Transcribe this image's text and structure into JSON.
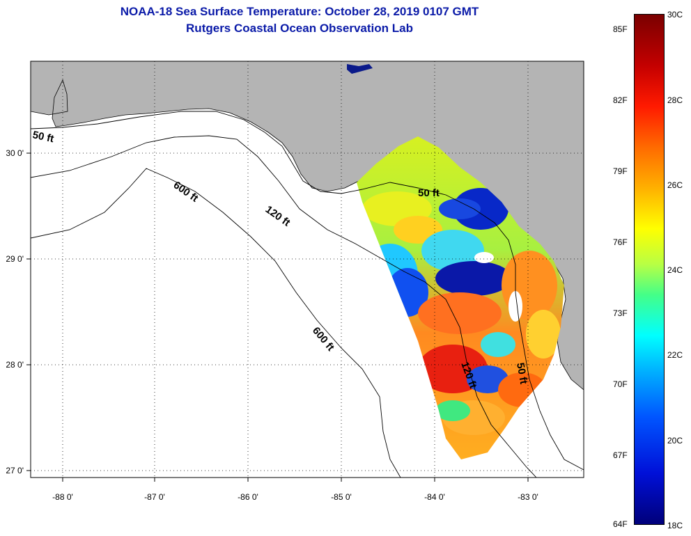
{
  "title": "NOAA-18 Sea Surface Temperature:  October 28, 2019 0107 GMT",
  "subtitle": "Rutgers Coastal Ocean Observation Lab",
  "map": {
    "lon_labels": [
      "-88 0'",
      "-87 0'",
      "-86 0'",
      "-85 0'",
      "-84 0'",
      "-83 0'"
    ],
    "lat_labels": [
      "30 0'",
      "29 0'",
      "28 0'",
      "27 0'"
    ],
    "contour_labels": [
      "50 ft",
      "600 ft",
      "120 ft",
      "50 ft",
      "600 ft",
      "120 ft",
      "50 ft"
    ],
    "colors": {
      "land": "#b4b4b4",
      "ocean": "#ffffff",
      "title": "#0a1aa8"
    }
  },
  "colorbar": {
    "fahrenheit_labels": [
      "85F",
      "82F",
      "79F",
      "76F",
      "73F",
      "70F",
      "67F",
      "64F"
    ],
    "celsius_labels": [
      "30C",
      "28C",
      "26C",
      "24C",
      "22C",
      "20C",
      "18C"
    ]
  }
}
